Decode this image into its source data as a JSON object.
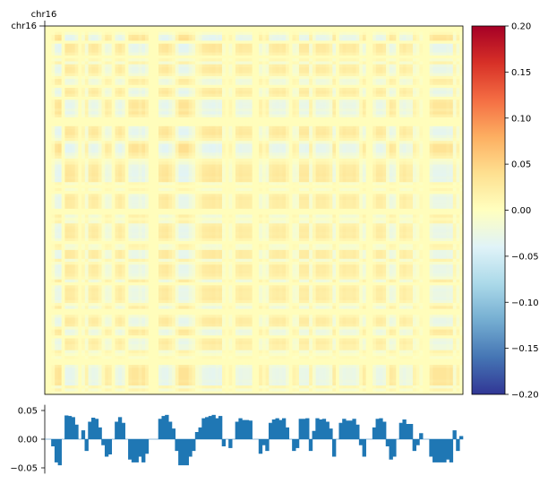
{
  "chart_data": [
    {
      "type": "heatmap",
      "region_label_top": "chr16",
      "region_label_left": "chr16",
      "colormap": [
        "#313695",
        "#4575b4",
        "#74add1",
        "#abd9e9",
        "#e0f3f8",
        "#ffffbf",
        "#fee090",
        "#fdae61",
        "#f46d43",
        "#d73027",
        "#a50026"
      ],
      "vmin": -0.2,
      "vmax": 0.2,
      "colorbar": {
        "placement": "right",
        "ticks": [
          0.2,
          0.15,
          0.1,
          0.05,
          0.0,
          -0.05,
          -0.1,
          -0.15,
          -0.2
        ],
        "tick_labels": [
          "0.20",
          "0.15",
          "0.10",
          "0.05",
          "0.00",
          "−0.05",
          "−0.10",
          "−0.15",
          "−0.20"
        ]
      },
      "matrix_note": "symmetric correlation matrix; value(i,j) = eigenvector(i) * eigenvector(j) * 0.02"
    },
    {
      "type": "area",
      "ylim": [
        -0.06,
        0.06
      ],
      "yticks": [
        0.05,
        0.0,
        -0.05
      ],
      "ytick_labels": [
        "0.05",
        "0.00",
        "−0.05"
      ],
      "color": "#1f77b4",
      "bins": 125,
      "values": [
        0,
        0,
        -0.012,
        -0.04,
        -0.045,
        0,
        0.041,
        0.04,
        0.038,
        0.025,
        0,
        0.015,
        -0.02,
        0.03,
        0.037,
        0.035,
        0.02,
        -0.01,
        -0.03,
        -0.026,
        0,
        0.03,
        0.038,
        0.028,
        0,
        -0.035,
        -0.04,
        -0.04,
        -0.03,
        -0.04,
        -0.025,
        0,
        0,
        0,
        0.035,
        0.04,
        0.042,
        0.03,
        0.018,
        -0.02,
        -0.045,
        -0.045,
        -0.045,
        -0.03,
        -0.02,
        0.012,
        0.02,
        0.036,
        0.038,
        0.04,
        0.042,
        0.036,
        0.04,
        -0.012,
        0,
        -0.015,
        0,
        0.03,
        0.036,
        0.033,
        0.033,
        0.032,
        0,
        0,
        -0.025,
        -0.01,
        -0.02,
        0.028,
        0.034,
        0.036,
        0.033,
        0.036,
        0.02,
        0,
        -0.02,
        -0.015,
        0.035,
        0.035,
        0.036,
        -0.02,
        0.014,
        0.036,
        0.034,
        0.035,
        0.03,
        0.018,
        -0.03,
        0,
        0.028,
        0.035,
        0.032,
        0.032,
        0.035,
        0.025,
        -0.01,
        -0.03,
        0,
        0,
        0.02,
        0.035,
        0.036,
        0.03,
        -0.012,
        -0.035,
        -0.03,
        0,
        0.028,
        0.034,
        0.026,
        0.026,
        -0.02,
        -0.01,
        0.01,
        0,
        0,
        -0.03,
        -0.04,
        -0.04,
        -0.04,
        -0.04,
        -0.035,
        -0.04,
        0.015,
        -0.02,
        0.005
      ]
    }
  ]
}
